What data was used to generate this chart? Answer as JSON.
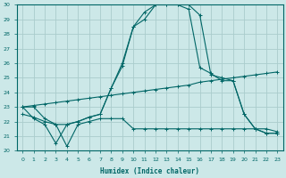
{
  "xlabel": "Humidex (Indice chaleur)",
  "xlim": [
    -0.5,
    23.5
  ],
  "ylim": [
    20,
    30
  ],
  "xticks": [
    0,
    1,
    2,
    3,
    4,
    5,
    6,
    7,
    8,
    9,
    10,
    11,
    12,
    13,
    14,
    15,
    16,
    17,
    18,
    19,
    20,
    21,
    22,
    23
  ],
  "yticks": [
    20,
    21,
    22,
    23,
    24,
    25,
    26,
    27,
    28,
    29,
    30
  ],
  "bg_color": "#cce8e8",
  "grid_color": "#aacccc",
  "line_color": "#006666",
  "curve1_x": [
    0,
    1,
    2,
    3,
    4,
    5,
    6,
    7,
    8,
    9,
    10,
    11,
    12,
    13,
    14,
    15,
    16,
    17,
    18,
    19,
    20,
    21,
    22,
    23
  ],
  "curve1_y": [
    23.0,
    23.0,
    22.2,
    21.8,
    21.8,
    22.0,
    22.3,
    22.5,
    24.3,
    25.8,
    28.5,
    29.0,
    30.0,
    30.0,
    30.0,
    29.7,
    25.7,
    25.3,
    24.8,
    24.8,
    22.5,
    21.5,
    21.2,
    21.2
  ],
  "curve2_x": [
    0,
    1,
    2,
    3,
    4,
    5,
    6,
    7,
    8,
    9,
    10,
    11,
    12,
    13,
    14,
    15,
    16,
    17,
    18,
    19,
    20,
    21,
    22,
    23
  ],
  "curve2_y": [
    23.0,
    22.2,
    21.8,
    20.5,
    21.8,
    22.0,
    22.3,
    22.5,
    24.3,
    26.0,
    28.5,
    29.5,
    30.0,
    30.0,
    30.0,
    30.0,
    29.3,
    25.2,
    25.0,
    24.8,
    22.5,
    21.5,
    21.2,
    21.2
  ],
  "curve3_x": [
    0,
    1,
    2,
    3,
    4,
    5,
    6,
    7,
    8,
    9,
    10,
    11,
    12,
    13,
    14,
    15,
    16,
    17,
    18,
    19,
    20,
    21,
    22,
    23
  ],
  "curve3_y": [
    23.0,
    23.1,
    23.2,
    23.3,
    23.4,
    23.5,
    23.6,
    23.7,
    23.8,
    23.9,
    24.0,
    24.1,
    24.2,
    24.3,
    24.4,
    24.5,
    24.7,
    24.8,
    24.9,
    25.0,
    25.1,
    25.2,
    25.3,
    25.4
  ],
  "curve4_x": [
    0,
    1,
    2,
    3,
    4,
    5,
    6,
    7,
    8,
    9,
    10,
    11,
    12,
    13,
    14,
    15,
    16,
    17,
    18,
    19,
    20,
    21,
    22,
    23
  ],
  "curve4_y": [
    22.5,
    22.3,
    22.0,
    21.8,
    20.3,
    21.8,
    22.0,
    22.2,
    22.2,
    22.2,
    21.5,
    21.5,
    21.5,
    21.5,
    21.5,
    21.5,
    21.5,
    21.5,
    21.5,
    21.5,
    21.5,
    21.5,
    21.5,
    21.3
  ]
}
